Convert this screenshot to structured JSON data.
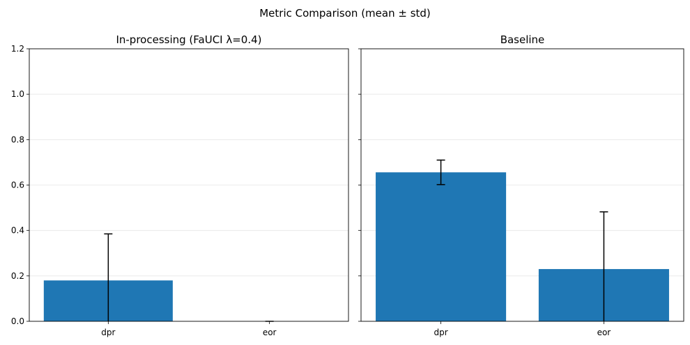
{
  "figure": {
    "suptitle": "Metric Comparison (mean ± std)"
  },
  "chart_data": [
    {
      "type": "bar",
      "title": "In-processing (FaUCI λ=0.4)",
      "categories": [
        "dpr",
        "eor"
      ],
      "values": [
        0.18,
        0.0
      ],
      "errors": [
        0.205,
        0.0
      ],
      "ylim": [
        0,
        1.2
      ],
      "yticks": [
        "0.0",
        "0.2",
        "0.4",
        "0.6",
        "0.8",
        "1.0",
        "1.2"
      ],
      "grid": true,
      "bar_color": "#1f77b4"
    },
    {
      "type": "bar",
      "title": "Baseline",
      "categories": [
        "dpr",
        "eor"
      ],
      "values": [
        0.656,
        0.23
      ],
      "errors": [
        0.054,
        0.252
      ],
      "ylim": [
        0,
        1.2
      ],
      "yticks": [
        "0.0",
        "0.2",
        "0.4",
        "0.6",
        "0.8",
        "1.0",
        "1.2"
      ],
      "grid": true,
      "bar_color": "#1f77b4"
    }
  ]
}
